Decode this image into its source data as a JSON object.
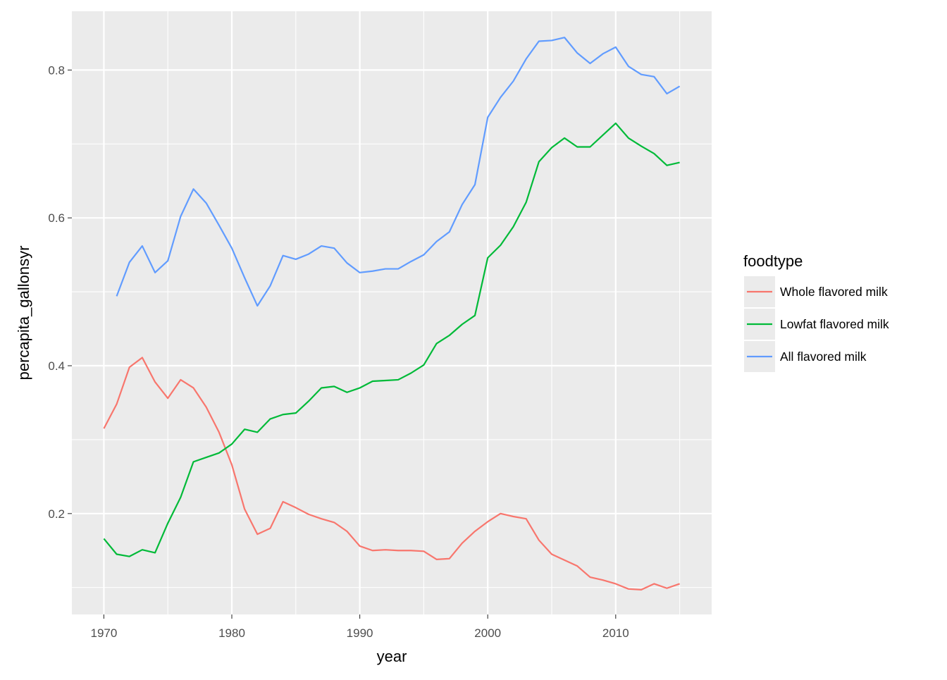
{
  "chart_data": {
    "type": "line",
    "xlabel": "year",
    "ylabel": "percapita_gallonsyr",
    "xlim": [
      1967.5,
      2017.5
    ],
    "ylim": [
      0.0635,
      0.8795
    ],
    "x_ticks": [
      1970,
      1980,
      1990,
      2000,
      2010
    ],
    "x_tick_labels": [
      "1970",
      "1980",
      "1990",
      "2000",
      "2010"
    ],
    "y_ticks": [
      0.2,
      0.4,
      0.6,
      0.8
    ],
    "y_tick_labels": [
      "0.2",
      "0.4",
      "0.6",
      "0.8"
    ],
    "grid": true,
    "panel_background": "#ebebeb",
    "legend": {
      "title": "foodtype",
      "position": "right"
    },
    "series": [
      {
        "name": "Whole flavored milk",
        "color": "#f8766d",
        "x": [
          1970,
          1971,
          1972,
          1973,
          1974,
          1975,
          1976,
          1977,
          1978,
          1979,
          1980,
          1981,
          1982,
          1983,
          1984,
          1985,
          1986,
          1987,
          1988,
          1989,
          1990,
          1991,
          1992,
          1993,
          1994,
          1995,
          1996,
          1997,
          1998,
          1999,
          2000,
          2001,
          2002,
          2003,
          2004,
          2005,
          2006,
          2007,
          2008,
          2009,
          2010,
          2011,
          2012,
          2013,
          2014,
          2015
        ],
        "values": [
          0.315,
          0.348,
          0.398,
          0.411,
          0.378,
          0.356,
          0.381,
          0.37,
          0.344,
          0.31,
          0.266,
          0.206,
          0.172,
          0.18,
          0.216,
          0.208,
          0.199,
          0.193,
          0.188,
          0.176,
          0.156,
          0.15,
          0.151,
          0.15,
          0.15,
          0.149,
          0.138,
          0.139,
          0.16,
          0.176,
          0.189,
          0.2,
          0.196,
          0.193,
          0.164,
          0.145,
          0.137,
          0.129,
          0.114,
          0.11,
          0.105,
          0.098,
          0.097,
          0.105,
          0.099,
          0.105
        ]
      },
      {
        "name": "Lowfat flavored milk",
        "color": "#00ba38",
        "x": [
          1970,
          1971,
          1972,
          1973,
          1974,
          1975,
          1976,
          1977,
          1978,
          1979,
          1980,
          1981,
          1982,
          1983,
          1984,
          1985,
          1986,
          1987,
          1988,
          1989,
          1990,
          1991,
          1992,
          1993,
          1994,
          1995,
          1996,
          1997,
          1998,
          1999,
          2000,
          2001,
          2002,
          2003,
          2004,
          2005,
          2006,
          2007,
          2008,
          2009,
          2010,
          2011,
          2012,
          2013,
          2014,
          2015
        ],
        "values": [
          0.166,
          0.145,
          0.142,
          0.151,
          0.147,
          0.187,
          0.222,
          0.27,
          0.276,
          0.282,
          0.294,
          0.314,
          0.31,
          0.328,
          0.334,
          0.336,
          0.352,
          0.37,
          0.372,
          0.364,
          0.37,
          0.379,
          0.38,
          0.381,
          0.39,
          0.401,
          0.43,
          0.441,
          0.456,
          0.468,
          0.546,
          0.563,
          0.588,
          0.621,
          0.676,
          0.695,
          0.708,
          0.696,
          0.696,
          0.712,
          0.728,
          0.708,
          0.697,
          0.687,
          0.671,
          0.675
        ]
      },
      {
        "name": "All flavored milk",
        "color": "#619cff",
        "x": [
          1971,
          1972,
          1973,
          1974,
          1975,
          1976,
          1977,
          1978,
          1979,
          1980,
          1981,
          1982,
          1983,
          1984,
          1985,
          1986,
          1987,
          1988,
          1989,
          1990,
          1991,
          1992,
          1993,
          1994,
          1995,
          1996,
          1997,
          1998,
          1999,
          2000,
          2001,
          2002,
          2003,
          2004,
          2005,
          2006,
          2007,
          2008,
          2009,
          2010,
          2011,
          2012,
          2013,
          2014,
          2015
        ],
        "values": [
          0.494,
          0.54,
          0.562,
          0.526,
          0.542,
          0.602,
          0.639,
          0.62,
          0.59,
          0.559,
          0.519,
          0.481,
          0.508,
          0.549,
          0.544,
          0.551,
          0.562,
          0.559,
          0.539,
          0.526,
          0.528,
          0.531,
          0.531,
          0.541,
          0.55,
          0.568,
          0.581,
          0.618,
          0.645,
          0.736,
          0.763,
          0.785,
          0.815,
          0.839,
          0.84,
          0.844,
          0.823,
          0.809,
          0.822,
          0.831,
          0.805,
          0.794,
          0.791,
          0.768,
          0.778
        ]
      }
    ]
  }
}
